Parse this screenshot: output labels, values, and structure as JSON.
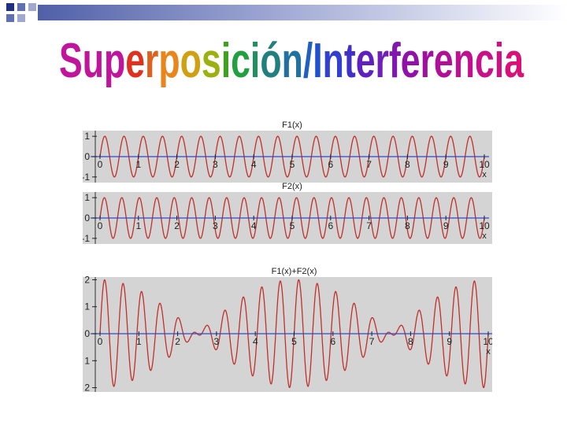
{
  "slide": {
    "title": "Superposición/Interferencia",
    "title_colors": [
      "#c0149c",
      "#c0149c",
      "#c0149c",
      "#e0301e",
      "#e0601e",
      "#e8861c",
      "#d0a010",
      "#9cb010",
      "#40a020",
      "#20a040",
      "#209060",
      "#208080",
      "#2070a0",
      "#2060c0",
      "#2050d0",
      "#3040d0",
      "#4030c8",
      "#6020c0",
      "#7020b8",
      "#8018b0",
      "#9010a8",
      "#a010a0",
      "#b01098",
      "#c01090",
      "#c81088",
      "#d01080",
      "#d81078"
    ]
  },
  "plots": [
    {
      "chart_data": {
        "type": "line",
        "title": "F1(x)",
        "xlabel": "x",
        "x_ticks": [
          "0",
          "1",
          "2",
          "3",
          "4",
          "5",
          "6",
          "7",
          "8",
          "9",
          "10"
        ],
        "y_ticks": [
          "1",
          "0",
          "-1"
        ],
        "xlim": [
          0,
          10
        ],
        "ylim": [
          -1.2,
          1.2
        ],
        "series": [
          {
            "function": "sin",
            "amplitude": 1,
            "cycles_per_unit": 2.0,
            "color": "#c0302a"
          }
        ]
      }
    },
    {
      "chart_data": {
        "type": "line",
        "title": "F2(x)",
        "xlabel": "x",
        "x_ticks": [
          "0",
          "1",
          "2",
          "3",
          "4",
          "5",
          "6",
          "7",
          "8",
          "9",
          "10"
        ],
        "y_ticks": [
          "1",
          "0",
          "-1"
        ],
        "xlim": [
          0,
          10
        ],
        "ylim": [
          -1.2,
          1.2
        ],
        "series": [
          {
            "function": "sin",
            "amplitude": 1,
            "cycles_per_unit": 2.2,
            "color": "#c0302a"
          }
        ]
      }
    },
    {
      "chart_data": {
        "type": "line",
        "title": "F1(x)+F2(x)",
        "xlabel": "x",
        "x_ticks": [
          "0",
          "1",
          "2",
          "3",
          "4",
          "5",
          "6",
          "7",
          "8",
          "9",
          "10"
        ],
        "y_ticks": [
          "2",
          "1",
          "0",
          "1",
          "2"
        ],
        "xlim": [
          0,
          10
        ],
        "ylim": [
          -2.1,
          2.1
        ],
        "series": [
          {
            "function": "sum",
            "amplitude": 1,
            "cycles_per_unit": [
              2.0,
              2.2
            ],
            "color": "#c0302a"
          }
        ]
      }
    }
  ],
  "colors": {
    "plot_bg": "#d4d4d4",
    "axis": "#3048c8",
    "curve": "#c0302a",
    "deco": "#203080"
  }
}
